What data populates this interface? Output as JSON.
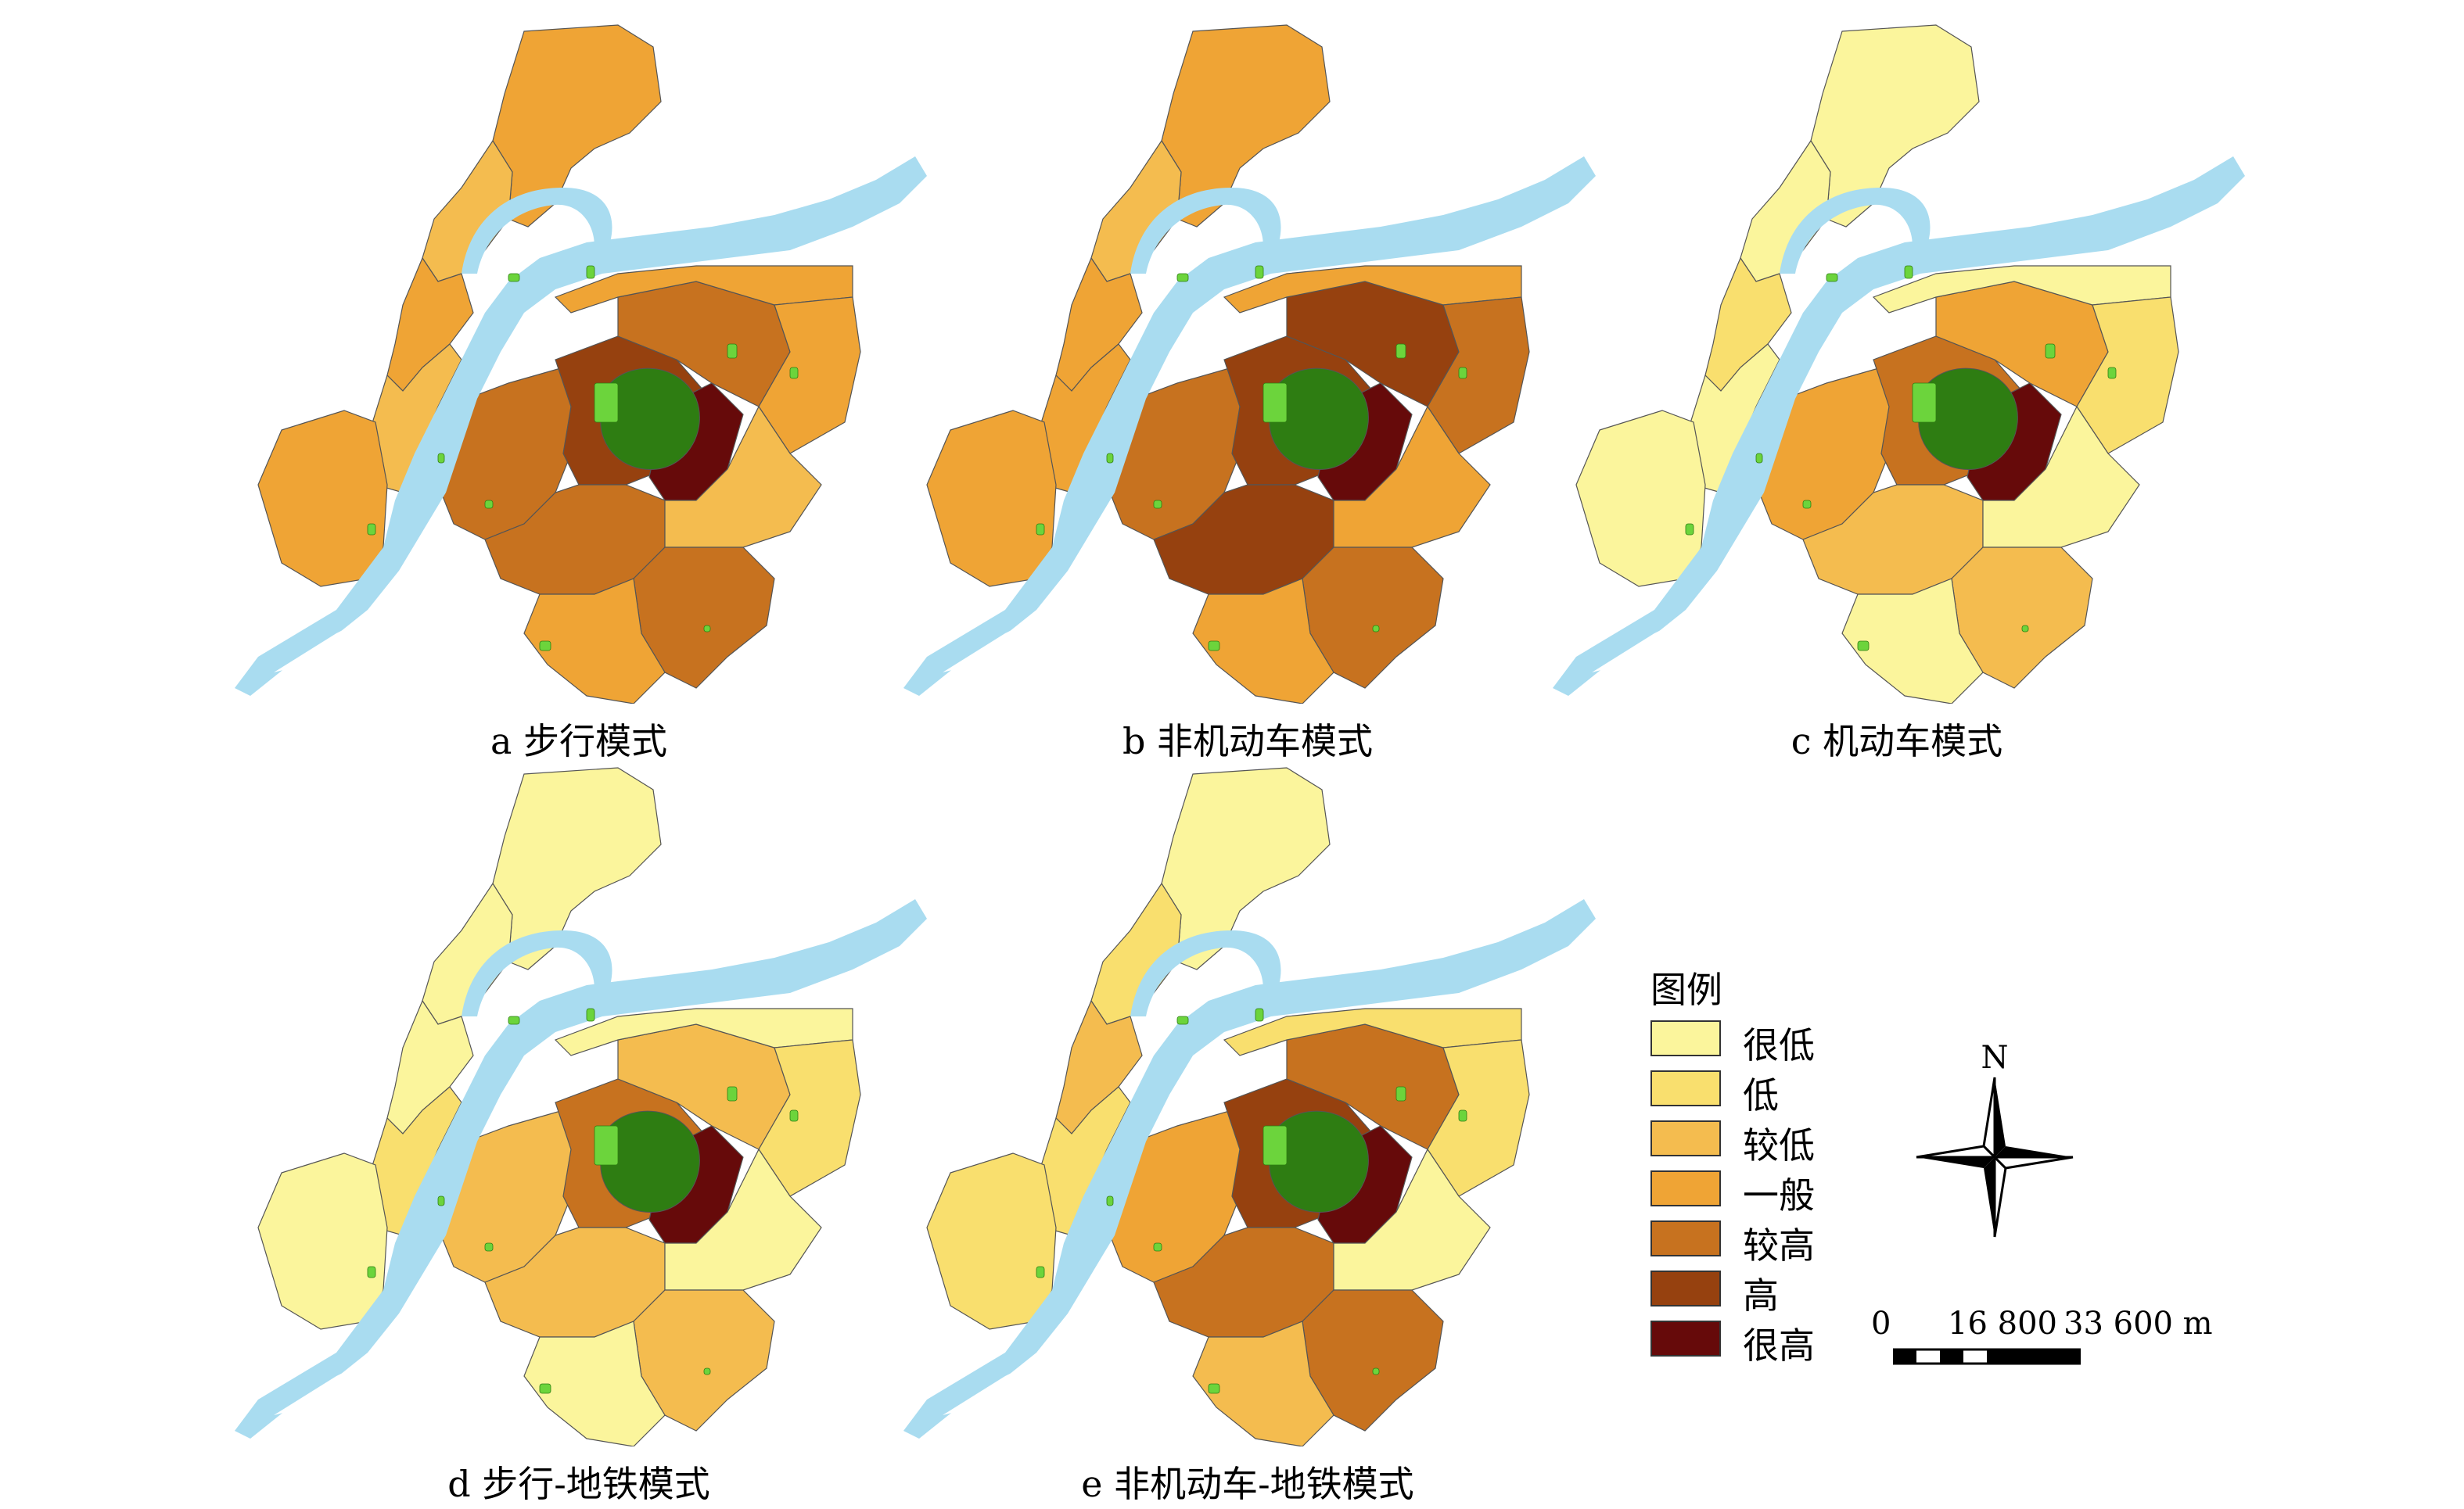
{
  "panels": [
    {
      "caption": "a 步行模式",
      "scheme": [
        3,
        2,
        3,
        2,
        3,
        4,
        5,
        6,
        4,
        4,
        3,
        3,
        2,
        4,
        3
      ]
    },
    {
      "caption": "b 非机动车模式",
      "scheme": [
        3,
        2,
        3,
        3,
        3,
        4,
        5,
        6,
        5,
        5,
        3,
        4,
        3,
        4,
        3
      ]
    },
    {
      "caption": "c 机动车模式",
      "scheme": [
        0,
        0,
        1,
        0,
        0,
        3,
        4,
        6,
        3,
        2,
        0,
        1,
        0,
        2,
        0
      ]
    },
    {
      "caption": "d 步行-地铁模式",
      "scheme": [
        0,
        0,
        0,
        1,
        0,
        2,
        4,
        6,
        2,
        2,
        0,
        1,
        0,
        2,
        0
      ]
    },
    {
      "caption": "e 非机动车-地铁模式",
      "scheme": [
        0,
        1,
        2,
        1,
        1,
        3,
        5,
        6,
        4,
        4,
        1,
        1,
        0,
        4,
        2
      ]
    }
  ],
  "legend": {
    "title": "图例",
    "items": [
      {
        "label": "很低",
        "color": "#fbf59c"
      },
      {
        "label": "低",
        "color": "#f9df6e"
      },
      {
        "label": "较低",
        "color": "#f4bc4f"
      },
      {
        "label": "一般",
        "color": "#efa435"
      },
      {
        "label": "较高",
        "color": "#c7721f"
      },
      {
        "label": "高",
        "color": "#96410f"
      },
      {
        "label": "很高",
        "color": "#660a0a"
      }
    ]
  },
  "compass": {
    "label": "N"
  },
  "scale": {
    "labels": [
      "0",
      "16 800",
      "33 600 m"
    ]
  },
  "colors": {
    "river": "#a9dcf0",
    "park": "#2e7d12",
    "green": "#6cd43c",
    "border": "#555555"
  }
}
